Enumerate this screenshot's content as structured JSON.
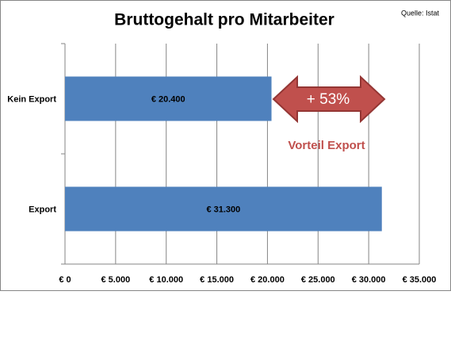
{
  "chart_data": {
    "type": "bar",
    "orientation": "horizontal",
    "title": "Bruttogehalt pro Mitarbeiter",
    "source": "Quelle: Istat",
    "annotations": [
      "+ 53%",
      "Vorteil Export"
    ],
    "categories": [
      "Kein Export",
      "Export"
    ],
    "values": [
      20400,
      31300
    ],
    "value_labels": [
      "€ 20.400",
      "€ 31.300"
    ],
    "color": "#4f81bd",
    "xlim": [
      0,
      35000
    ],
    "xticks": [
      {
        "value": 0,
        "label": "€ 0"
      },
      {
        "value": 5000,
        "label": "€ 5.000"
      },
      {
        "value": 10000,
        "label": "€ 10.000"
      },
      {
        "value": 15000,
        "label": "€ 15.000"
      },
      {
        "value": 20000,
        "label": "€ 20.000"
      },
      {
        "value": 25000,
        "label": "€ 25.000"
      },
      {
        "value": 30000,
        "label": "€ 30.000"
      },
      {
        "value": 35000,
        "label": "€ 35.000"
      }
    ],
    "grid": true
  }
}
